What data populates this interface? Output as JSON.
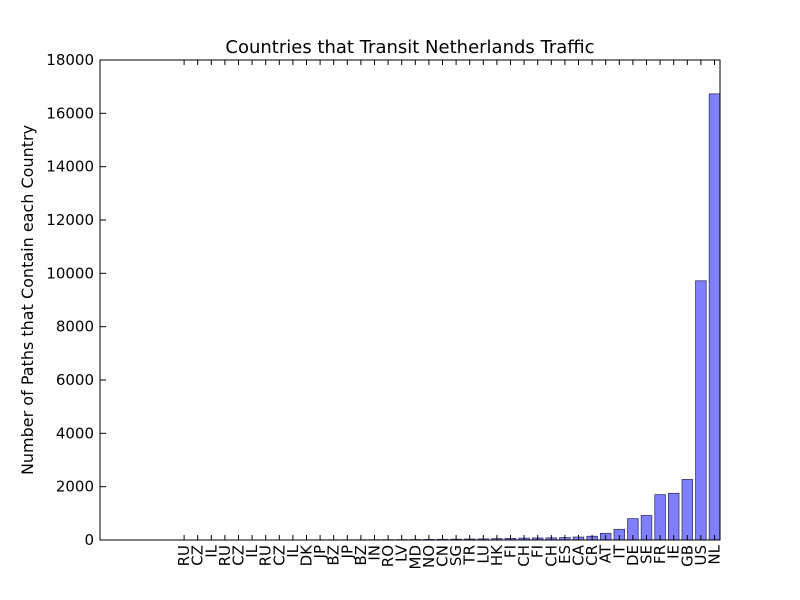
{
  "chart_data": {
    "type": "bar",
    "title": "Countries that Transit Netherlands  Traffic",
    "xlabel": "",
    "ylabel": "Number of Paths that Contain each Country",
    "ylim": [
      0,
      18000
    ],
    "yticks": [
      0,
      2000,
      4000,
      6000,
      8000,
      10000,
      12000,
      14000,
      16000,
      18000
    ],
    "grid": false,
    "categories": [
      "",
      "",
      "",
      "",
      "",
      "",
      "",
      "",
      "",
      "",
      "",
      "",
      "",
      "",
      "",
      "",
      "",
      "",
      "",
      "",
      "",
      "",
      "",
      "",
      "",
      "",
      "",
      "",
      "",
      "",
      "",
      "",
      "",
      "",
      "",
      "",
      "",
      "",
      "",
      "",
      "",
      "",
      "",
      "",
      "",
      "",
      "",
      "RU",
      "CZ",
      "IL",
      "RU",
      "CZ",
      "IL",
      "RU",
      "CZ",
      "IL",
      "DK",
      "JP",
      "BZ",
      "JP",
      "BZ",
      "IN",
      "RO",
      "LV",
      "MD",
      "NO",
      "CN",
      "SG",
      "TR",
      "LU",
      "HK",
      "FI",
      "CH",
      "FI",
      "CH",
      "ES",
      "CA",
      "CR",
      "AT",
      "IT",
      "DE",
      "SE",
      "FR",
      "IE",
      "GB",
      "US",
      "NL"
    ],
    "values": [
      0,
      0,
      0,
      0,
      0,
      0,
      0,
      0,
      0,
      0,
      0,
      0,
      0,
      0,
      0,
      0,
      0,
      0,
      0,
      0,
      0,
      0,
      0,
      0,
      0,
      0,
      0,
      0,
      0,
      0,
      0,
      0,
      0,
      0,
      0,
      0,
      0,
      0,
      0,
      0,
      0,
      0,
      0,
      0,
      0,
      0,
      0,
      1,
      1,
      1,
      2,
      2,
      2,
      3,
      3,
      4,
      5,
      6,
      7,
      8,
      9,
      10,
      12,
      14,
      16,
      20,
      25,
      30,
      35,
      40,
      50,
      60,
      70,
      75,
      80,
      90,
      110,
      140,
      250,
      400,
      800,
      920,
      1700,
      1750,
      2270,
      9720,
      16730
    ]
  }
}
